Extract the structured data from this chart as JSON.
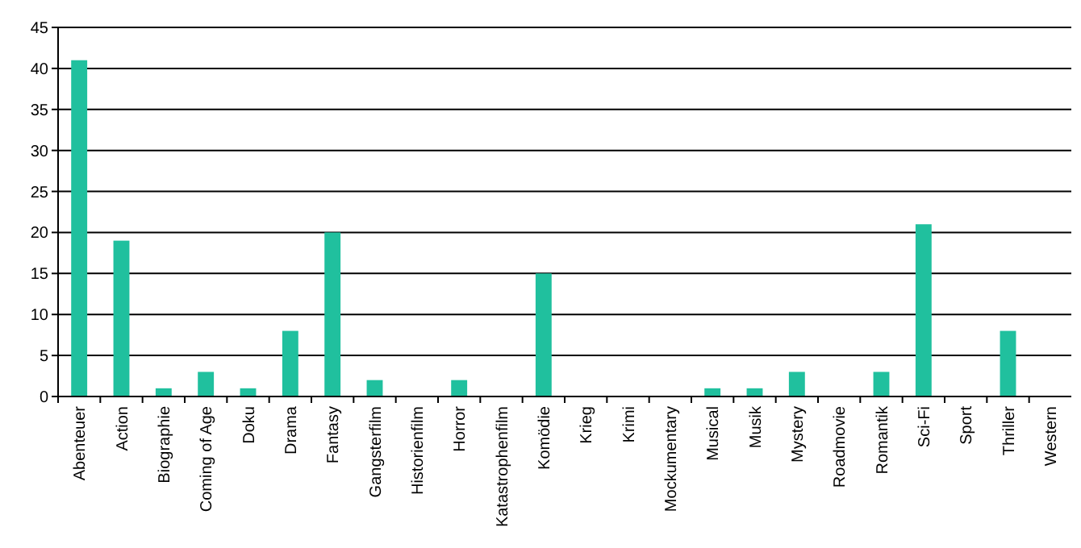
{
  "chart_data": {
    "type": "bar",
    "categories": [
      "Abenteuer",
      "Action",
      "Biographie",
      "Coming of Age",
      "Doku",
      "Drama",
      "Fantasy",
      "Gangsterfilm",
      "Historienfilm",
      "Horror",
      "Katastrophenfilm",
      "Komödie",
      "Krieg",
      "Krimi",
      "Mockumentary",
      "Musical",
      "Musik",
      "Mystery",
      "Roadmovie",
      "Romantik",
      "Sci-Fi",
      "Sport",
      "Thriller",
      "Western"
    ],
    "values": [
      41,
      19,
      1,
      3,
      1,
      8,
      20,
      2,
      0,
      2,
      0,
      15,
      0,
      0,
      0,
      1,
      1,
      3,
      0,
      3,
      21,
      0,
      8,
      0
    ],
    "color": "#20c09e",
    "ylim": [
      0,
      45
    ],
    "yticks": [
      0,
      5,
      10,
      15,
      20,
      25,
      30,
      35,
      40,
      45
    ],
    "grid": "y"
  }
}
